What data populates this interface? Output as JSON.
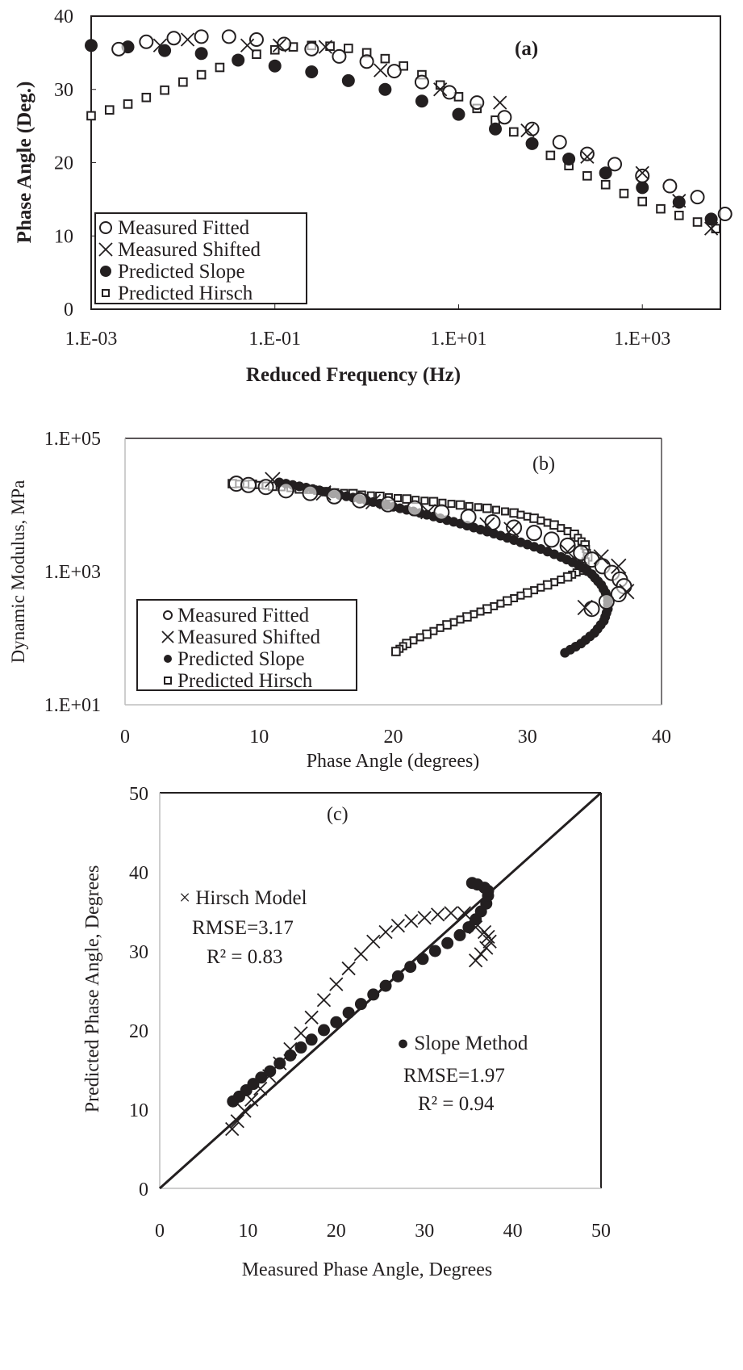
{
  "figure": {
    "panels": [
      "(a)",
      "(b)",
      "(c)"
    ]
  },
  "chart_data": [
    {
      "id": "a",
      "type": "scatter",
      "panel_label": "(a)",
      "title": "",
      "xlabel": "Reduced Frequency (Hz)",
      "ylabel": "Phase Angle (Deg.)",
      "xscale": "log",
      "xlim_log10": [
        -3,
        3.85
      ],
      "ylim": [
        0,
        40
      ],
      "xticks": [
        "1.E-03",
        "1.E-01",
        "1.E+01",
        "1.E+03"
      ],
      "xticks_log10": [
        -3,
        -1,
        1,
        3
      ],
      "yticks": [
        0,
        10,
        20,
        30,
        40
      ],
      "grid": false,
      "legend_position": "lower left",
      "legend": [
        "Measured Fitted",
        "Measured Shifted",
        "Predicted Slope",
        "Predicted Hirsch"
      ],
      "series": [
        {
          "name": "Measured Fitted",
          "marker": "open-circle",
          "x_log10": [
            -2.7,
            -2.4,
            -2.1,
            -1.8,
            -1.5,
            -1.2,
            -0.9,
            -0.6,
            -0.3,
            0.0,
            0.3,
            0.6,
            0.9,
            1.2,
            1.5,
            1.8,
            2.1,
            2.4,
            2.7,
            3.0,
            3.3,
            3.6,
            3.9
          ],
          "y": [
            35.5,
            36.5,
            37.0,
            37.2,
            37.2,
            36.8,
            36.2,
            35.5,
            34.5,
            33.8,
            32.5,
            31.0,
            29.6,
            28.2,
            26.2,
            24.6,
            22.8,
            21.2,
            19.8,
            18.2,
            16.8,
            15.3,
            13.0
          ]
        },
        {
          "name": "Measured Shifted",
          "marker": "cross",
          "x_log10": [
            -2.25,
            -1.95,
            -1.3,
            -0.95,
            -0.45,
            0.15,
            0.8,
            1.45,
            1.75,
            2.4,
            3.0,
            3.4,
            3.75
          ],
          "y": [
            36.0,
            36.8,
            36.0,
            36.0,
            35.8,
            32.6,
            30.0,
            28.2,
            24.4,
            20.8,
            18.6,
            14.8,
            11.0
          ]
        },
        {
          "name": "Predicted Slope",
          "marker": "filled-circle",
          "x_log10": [
            -3.0,
            -2.6,
            -2.2,
            -1.8,
            -1.4,
            -1.0,
            -0.6,
            -0.2,
            0.2,
            0.6,
            1.0,
            1.4,
            1.8,
            2.2,
            2.6,
            3.0,
            3.4,
            3.75
          ],
          "y": [
            36.0,
            35.8,
            35.3,
            34.9,
            34.0,
            33.2,
            32.4,
            31.2,
            30.0,
            28.4,
            26.6,
            24.6,
            22.6,
            20.5,
            18.6,
            16.6,
            14.6,
            12.3
          ]
        },
        {
          "name": "Predicted Hirsch",
          "marker": "open-square",
          "x_log10": [
            -3.0,
            -2.8,
            -2.6,
            -2.4,
            -2.2,
            -2.0,
            -1.8,
            -1.6,
            -1.4,
            -1.2,
            -1.0,
            -0.8,
            -0.6,
            -0.4,
            -0.2,
            0.0,
            0.2,
            0.4,
            0.6,
            0.8,
            1.0,
            1.2,
            1.4,
            1.6,
            1.8,
            2.0,
            2.2,
            2.4,
            2.6,
            2.8,
            3.0,
            3.2,
            3.4,
            3.6,
            3.8
          ],
          "y": [
            26.4,
            27.2,
            28.0,
            28.9,
            29.9,
            31.0,
            32.0,
            33.0,
            34.0,
            34.8,
            35.4,
            35.8,
            36.0,
            35.9,
            35.6,
            35.0,
            34.2,
            33.2,
            32.0,
            30.6,
            29.0,
            27.4,
            25.8,
            24.2,
            22.6,
            21.0,
            19.6,
            18.2,
            17.0,
            15.8,
            14.7,
            13.7,
            12.8,
            11.9,
            11.0
          ]
        }
      ]
    },
    {
      "id": "b",
      "type": "scatter",
      "panel_label": "(b)",
      "title": "",
      "xlabel": "Phase Angle (degrees)",
      "ylabel": "Dynamic Modulus, MPa",
      "yscale": "log",
      "xlim": [
        0,
        40
      ],
      "ylim_log10": [
        1,
        5
      ],
      "xticks": [
        0,
        10,
        20,
        30,
        40
      ],
      "yticks": [
        "1.E+01",
        "1.E+03",
        "1.E+05"
      ],
      "yticks_log10": [
        1,
        3,
        5
      ],
      "grid": false,
      "legend_position": "lower left",
      "legend": [
        "Measured Fitted",
        "Measured Shifted",
        "Predicted Slope",
        "Predicted Hirsch"
      ],
      "series": [
        {
          "name": "Measured Fitted",
          "marker": "open-circle",
          "x": [
            8.3,
            9.2,
            10.5,
            12.0,
            13.8,
            15.6,
            17.5,
            19.6,
            21.6,
            23.6,
            25.6,
            27.4,
            29.0,
            30.5,
            31.8,
            33.0,
            34.0,
            34.8,
            35.6,
            36.3,
            36.9,
            37.2,
            36.8,
            35.9,
            34.8
          ],
          "y_log10": [
            4.32,
            4.3,
            4.27,
            4.22,
            4.18,
            4.13,
            4.07,
            4.01,
            3.95,
            3.89,
            3.82,
            3.74,
            3.66,
            3.58,
            3.48,
            3.39,
            3.28,
            3.18,
            3.08,
            2.98,
            2.88,
            2.78,
            2.66,
            2.55,
            2.44
          ]
        },
        {
          "name": "Measured Shifted",
          "marker": "cross",
          "x": [
            11.0,
            14.8,
            18.5,
            22.6,
            27.0,
            28.8,
            33.0,
            35.5,
            36.8,
            37.4,
            34.3
          ],
          "y_log10": [
            4.38,
            4.18,
            4.05,
            3.9,
            3.7,
            3.63,
            3.3,
            3.22,
            3.08,
            2.7,
            2.46
          ]
        },
        {
          "name": "Predicted Slope",
          "marker": "filled-circle",
          "x": [
            11.5,
            13,
            14.5,
            16,
            17.5,
            19,
            20.5,
            22,
            23.5,
            25,
            26.5,
            28,
            29.5,
            31,
            32.5,
            33.8,
            34.8,
            35.5,
            36.0,
            36.0,
            35.7,
            35.0,
            34.0,
            32.8
          ],
          "y_log10": [
            4.34,
            4.28,
            4.22,
            4.15,
            4.09,
            4.02,
            3.95,
            3.88,
            3.8,
            3.72,
            3.63,
            3.54,
            3.44,
            3.34,
            3.22,
            3.1,
            2.96,
            2.8,
            2.62,
            2.44,
            2.26,
            2.08,
            1.92,
            1.78
          ]
        },
        {
          "name": "Predicted Hirsch",
          "marker": "open-square",
          "x": [
            8.0,
            9.5,
            11.0,
            13.0,
            15.0,
            17.0,
            19.0,
            21.0,
            23.0,
            25.0,
            27.0,
            29.0,
            30.5,
            32.0,
            33.5,
            34.3,
            34.5,
            34.0,
            33.0,
            31.5,
            30.0,
            28.5,
            27.0,
            25.5,
            24.0,
            22.5,
            21.0,
            20.2
          ],
          "y_log10": [
            4.32,
            4.31,
            4.28,
            4.24,
            4.2,
            4.17,
            4.13,
            4.09,
            4.05,
            4.0,
            3.95,
            3.88,
            3.8,
            3.7,
            3.56,
            3.4,
            3.22,
            3.02,
            2.92,
            2.8,
            2.68,
            2.56,
            2.44,
            2.32,
            2.2,
            2.06,
            1.92,
            1.8
          ]
        }
      ]
    },
    {
      "id": "c",
      "type": "scatter",
      "panel_label": "(c)",
      "title": "",
      "xlabel": "Measured Phase Angle, Degrees",
      "ylabel": "Predicted Phase Angle, Degrees",
      "xlim": [
        0,
        50
      ],
      "ylim": [
        0,
        50
      ],
      "xticks": [
        0,
        10,
        20,
        30,
        40,
        50
      ],
      "yticks": [
        0,
        10,
        20,
        30,
        40,
        50
      ],
      "grid": false,
      "annotations": [
        {
          "text": "× Hirsch Model",
          "x": 2.5,
          "y": 36
        },
        {
          "text": "RMSE=3.17",
          "x": 4,
          "y": 32.5
        },
        {
          "text": "R² = 0.83",
          "x": 5,
          "y": 29.5
        },
        {
          "text": "● Slope Method",
          "x": 27,
          "y": 18.5
        },
        {
          "text": "RMSE=1.97",
          "x": 28,
          "y": 14.5
        },
        {
          "text": "R² = 0.94",
          "x": 29,
          "y": 11.5
        }
      ],
      "reference_line": {
        "name": "1:1 line",
        "x": [
          0,
          50
        ],
        "y": [
          0,
          50
        ]
      },
      "series": [
        {
          "name": "Hirsch Model",
          "marker": "cross",
          "x": [
            8.2,
            8.8,
            9.6,
            10.4,
            11.4,
            12.4,
            13.6,
            14.8,
            16.0,
            17.2,
            18.6,
            20.0,
            21.4,
            22.8,
            24.2,
            25.6,
            27.0,
            28.5,
            30.0,
            31.5,
            33.0,
            34.5,
            35.8,
            36.8,
            37.2,
            37.4,
            37.0,
            36.4,
            35.8
          ],
          "y": [
            7.5,
            8.5,
            9.8,
            11.2,
            12.6,
            14.2,
            15.8,
            17.6,
            19.6,
            21.6,
            23.8,
            25.8,
            27.8,
            29.6,
            31.2,
            32.4,
            33.2,
            33.8,
            34.2,
            34.6,
            34.8,
            34.8,
            33.0,
            32.4,
            31.8,
            31.2,
            30.4,
            29.6,
            28.8
          ]
        },
        {
          "name": "Slope Method",
          "marker": "filled-circle",
          "x": [
            8.3,
            9.0,
            9.8,
            10.6,
            11.5,
            12.5,
            13.6,
            14.8,
            16.0,
            17.2,
            18.6,
            20.0,
            21.4,
            22.8,
            24.2,
            25.6,
            27.0,
            28.4,
            29.8,
            31.2,
            32.6,
            34.0,
            35.0,
            35.8,
            36.4,
            37.0,
            37.2,
            37.2,
            36.8,
            36.0,
            35.4
          ],
          "y": [
            11.0,
            11.6,
            12.4,
            13.2,
            14.0,
            14.8,
            15.8,
            16.8,
            17.8,
            18.8,
            20.0,
            21.0,
            22.2,
            23.3,
            24.5,
            25.6,
            26.8,
            28.0,
            29.0,
            30.0,
            31.0,
            32.0,
            33.0,
            34.0,
            35.0,
            36.0,
            37.0,
            37.6,
            38.0,
            38.4,
            38.6
          ]
        }
      ]
    }
  ]
}
